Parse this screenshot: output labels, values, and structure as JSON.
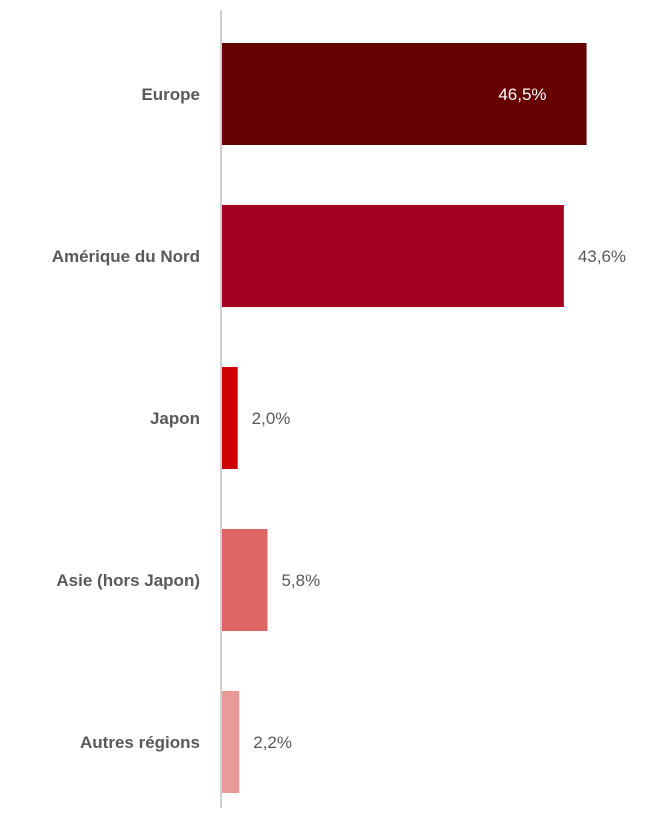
{
  "chart_data": {
    "type": "bar",
    "orientation": "horizontal",
    "title": "",
    "xlabel": "",
    "ylabel": "",
    "categories": [
      "Europe",
      "Amérique du Nord",
      "Japon",
      "Asie (hors Japon)",
      "Autres régions"
    ],
    "values": [
      46.5,
      43.6,
      2.0,
      5.8,
      2.2
    ],
    "value_labels": [
      "46,5%",
      "43,6%",
      "2,0%",
      "5,8%",
      "2,2%"
    ],
    "colors": [
      "#660000",
      "#a50021",
      "#cc0000",
      "#e06666",
      "#ea9999"
    ],
    "xlim": [
      0,
      50
    ],
    "grid": false,
    "legend": "none"
  }
}
